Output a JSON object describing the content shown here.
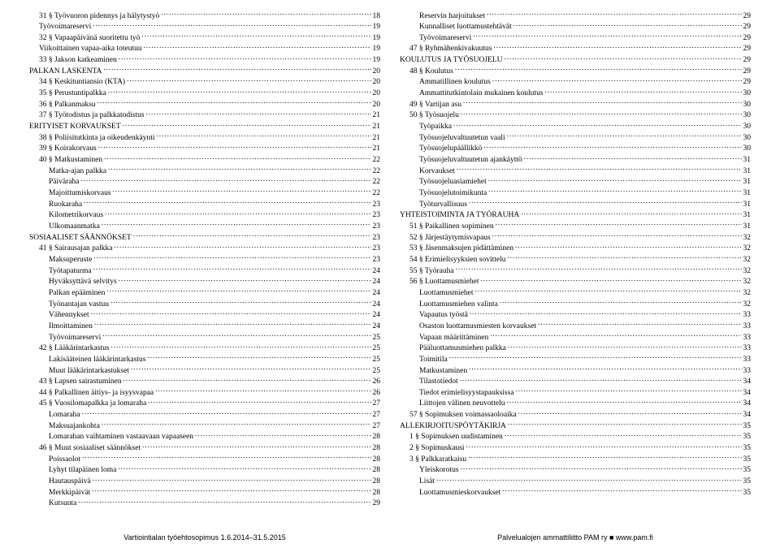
{
  "left": {
    "entries": [
      {
        "indent": 1,
        "label": "31 § Työvuoron pidennys ja hälytystyö",
        "page": "18"
      },
      {
        "indent": 1,
        "label": "Työvoimareservi",
        "page": "19"
      },
      {
        "indent": 1,
        "label": "32 § Vapaapäivänä suoritettu työ",
        "page": "19"
      },
      {
        "indent": 1,
        "label": "Viikoittainen vapaa-aika toteutuu",
        "page": "19"
      },
      {
        "indent": 1,
        "label": "33 § Jakson katkeaminen",
        "page": "19"
      },
      {
        "indent": 0,
        "label": "PALKAN LASKENTA",
        "page": "20"
      },
      {
        "indent": 1,
        "label": "34 § Keskituntiansio (KTA)",
        "page": "20"
      },
      {
        "indent": 1,
        "label": "35 § Perustuntipalkka",
        "page": "20"
      },
      {
        "indent": 1,
        "label": "36 § Palkanmaksu",
        "page": "20"
      },
      {
        "indent": 1,
        "label": "37 § Työtodistus ja palkkatodistus",
        "page": "21"
      },
      {
        "indent": 0,
        "label": "ERITYISET KORVAUKSET",
        "page": "21"
      },
      {
        "indent": 1,
        "label": "38 § Poliisitutkinta ja oikeudenkäynti",
        "page": "21"
      },
      {
        "indent": 1,
        "label": "39 § Koirakorvaus",
        "page": "21"
      },
      {
        "indent": 1,
        "label": "40 § Matkustaminen",
        "page": "22"
      },
      {
        "indent": 2,
        "label": "Matka-ajan palkka",
        "page": "22"
      },
      {
        "indent": 2,
        "label": "Päiväraha",
        "page": "22"
      },
      {
        "indent": 2,
        "label": "Majoittumiskorvaus",
        "page": "22"
      },
      {
        "indent": 2,
        "label": "Ruokaraha",
        "page": "23"
      },
      {
        "indent": 2,
        "label": "Kilometrikorvaus",
        "page": "23"
      },
      {
        "indent": 2,
        "label": "Ulkomaanmatka",
        "page": "23"
      },
      {
        "indent": 0,
        "label": "SOSIAALISET SÄÄNNÖKSET",
        "page": "23"
      },
      {
        "indent": 1,
        "label": "41 § Sairausajan palkka",
        "page": "23"
      },
      {
        "indent": 2,
        "label": "Maksuperuste",
        "page": "23"
      },
      {
        "indent": 2,
        "label": "Työtapaturma",
        "page": "24"
      },
      {
        "indent": 2,
        "label": "Hyväksyttävä selvitys",
        "page": "24"
      },
      {
        "indent": 2,
        "label": "Palkan epääminen",
        "page": "24"
      },
      {
        "indent": 2,
        "label": "Työnantajan vastuu",
        "page": "24"
      },
      {
        "indent": 2,
        "label": "Vähennykset",
        "page": "24"
      },
      {
        "indent": 2,
        "label": "Ilmoittaminen",
        "page": "24"
      },
      {
        "indent": 2,
        "label": "Työvoimareservi",
        "page": "25"
      },
      {
        "indent": 1,
        "label": "42 § Lääkärintarkastus",
        "page": "25"
      },
      {
        "indent": 2,
        "label": "Lakisääteinen lääkärintarkastus",
        "page": "25"
      },
      {
        "indent": 2,
        "label": "Muut lääkärintarkastukset",
        "page": "25"
      },
      {
        "indent": 1,
        "label": "43 § Lapsen sairastuminen",
        "page": "26"
      },
      {
        "indent": 1,
        "label": "44 § Palkallinen äitiys- ja isyysvapaa",
        "page": "26"
      },
      {
        "indent": 1,
        "label": "45 § Vuosilomapalkka ja lomaraha",
        "page": "27"
      },
      {
        "indent": 2,
        "label": "Lomaraha",
        "page": "27"
      },
      {
        "indent": 2,
        "label": "Maksuajankohta",
        "page": "27"
      },
      {
        "indent": 2,
        "label": "Lomarahan vaihtaminen vastaavaan vapaaseen",
        "page": "28"
      },
      {
        "indent": 1,
        "label": "46 § Muut sosiaaliset säännökset",
        "page": "28"
      },
      {
        "indent": 2,
        "label": "Poissaolot",
        "page": "28"
      },
      {
        "indent": 2,
        "label": "Lyhyt tilapäinen loma",
        "page": "28"
      },
      {
        "indent": 2,
        "label": "Hautauspäivä",
        "page": "28"
      },
      {
        "indent": 2,
        "label": "Merkkipäivät",
        "page": "28"
      },
      {
        "indent": 2,
        "label": "Kutsunta",
        "page": "29"
      }
    ],
    "footer": "Vartiointialan työehtosopimus 1.6.2014–31.5.2015"
  },
  "right": {
    "entries": [
      {
        "indent": 2,
        "label": "Reservin harjoitukset",
        "page": "29"
      },
      {
        "indent": 2,
        "label": "Kunnalliset luottamustehtävät",
        "page": "29"
      },
      {
        "indent": 2,
        "label": "Työvoimareservi",
        "page": "29"
      },
      {
        "indent": 1,
        "label": "47 § Ryhmähenkivakuutus",
        "page": "29"
      },
      {
        "indent": 0,
        "label": "KOULUTUS JA TYÖSUOJELU",
        "page": "29"
      },
      {
        "indent": 1,
        "label": "48 § Koulutus",
        "page": "29"
      },
      {
        "indent": 2,
        "label": "Ammatillinen koulutus",
        "page": "29"
      },
      {
        "indent": 2,
        "label": "Ammattitutkintolain mukainen koulutus",
        "page": "30"
      },
      {
        "indent": 1,
        "label": "49 § Vartijan asu",
        "page": "30"
      },
      {
        "indent": 1,
        "label": "50 § Työsuojelu",
        "page": "30"
      },
      {
        "indent": 2,
        "label": "Työpaikka",
        "page": "30"
      },
      {
        "indent": 2,
        "label": "Työsuojeluvaltuutetun vaali",
        "page": "30"
      },
      {
        "indent": 2,
        "label": "Työsuojelupäällikkö",
        "page": "30"
      },
      {
        "indent": 2,
        "label": "Työsuojeluvaltuutetun ajankäyttö",
        "page": "31"
      },
      {
        "indent": 2,
        "label": "Korvaukset",
        "page": "31"
      },
      {
        "indent": 2,
        "label": "Työsuojeluasiamiehet",
        "page": "31"
      },
      {
        "indent": 2,
        "label": "Työsuojelutoimikunta",
        "page": "31"
      },
      {
        "indent": 2,
        "label": "Työturvallisuus",
        "page": "31"
      },
      {
        "indent": 0,
        "label": "YHTEISTOIMINTA JA TYÖRAUHA",
        "page": "31"
      },
      {
        "indent": 1,
        "label": "51 § Paikallinen sopiminen",
        "page": "31"
      },
      {
        "indent": 1,
        "label": "52 § Järjestäytymisvapaus",
        "page": "32"
      },
      {
        "indent": 1,
        "label": "53 § Jäsenmaksujen pidättäminen",
        "page": "32"
      },
      {
        "indent": 1,
        "label": "54 § Erimielisyyksien sovittelu",
        "page": "32"
      },
      {
        "indent": 1,
        "label": "55 § Työrauha",
        "page": "32"
      },
      {
        "indent": 1,
        "label": "56 § Luottamusmiehet",
        "page": "32"
      },
      {
        "indent": 2,
        "label": "Luottamusmiehet",
        "page": "32"
      },
      {
        "indent": 2,
        "label": "Luottamusmiehen valinta",
        "page": "32"
      },
      {
        "indent": 2,
        "label": "Vapautus työstä",
        "page": "33"
      },
      {
        "indent": 2,
        "label": "Osaston luottamusmiesten korvaukset",
        "page": "33"
      },
      {
        "indent": 2,
        "label": "Vapaan määrittäminen",
        "page": "33"
      },
      {
        "indent": 2,
        "label": "Pääluottamusmiehen palkka",
        "page": "33"
      },
      {
        "indent": 2,
        "label": "Toimitila",
        "page": "33"
      },
      {
        "indent": 2,
        "label": "Matkustaminen",
        "page": "33"
      },
      {
        "indent": 2,
        "label": "Tilastotiedot",
        "page": "34"
      },
      {
        "indent": 2,
        "label": "Tiedot erimielisyystapauksissa",
        "page": "34"
      },
      {
        "indent": 2,
        "label": "Liittojen välinen neuvottelu",
        "page": "34"
      },
      {
        "indent": 1,
        "label": "57 § Sopimuksen voimassaoloaika",
        "page": "34"
      },
      {
        "indent": 0,
        "label": "ALLEKIRJOITUSPÖYTÄKIRJA",
        "page": "35"
      },
      {
        "indent": 1,
        "label": "1 § Sopimuksen uudistaminen",
        "page": "35"
      },
      {
        "indent": 1,
        "label": "2 § Sopimuskausi",
        "page": "35"
      },
      {
        "indent": 1,
        "label": "3 § Palkkaratkaisu",
        "page": "35"
      },
      {
        "indent": 2,
        "label": "Yleiskorotus",
        "page": "35"
      },
      {
        "indent": 2,
        "label": "Lisät",
        "page": "35"
      },
      {
        "indent": 2,
        "label": "Luottamusmieskorvaukset",
        "page": "35"
      }
    ],
    "footer": "Palvelualojen ammattiliitto PAM ry ■ www.pam.fi"
  }
}
